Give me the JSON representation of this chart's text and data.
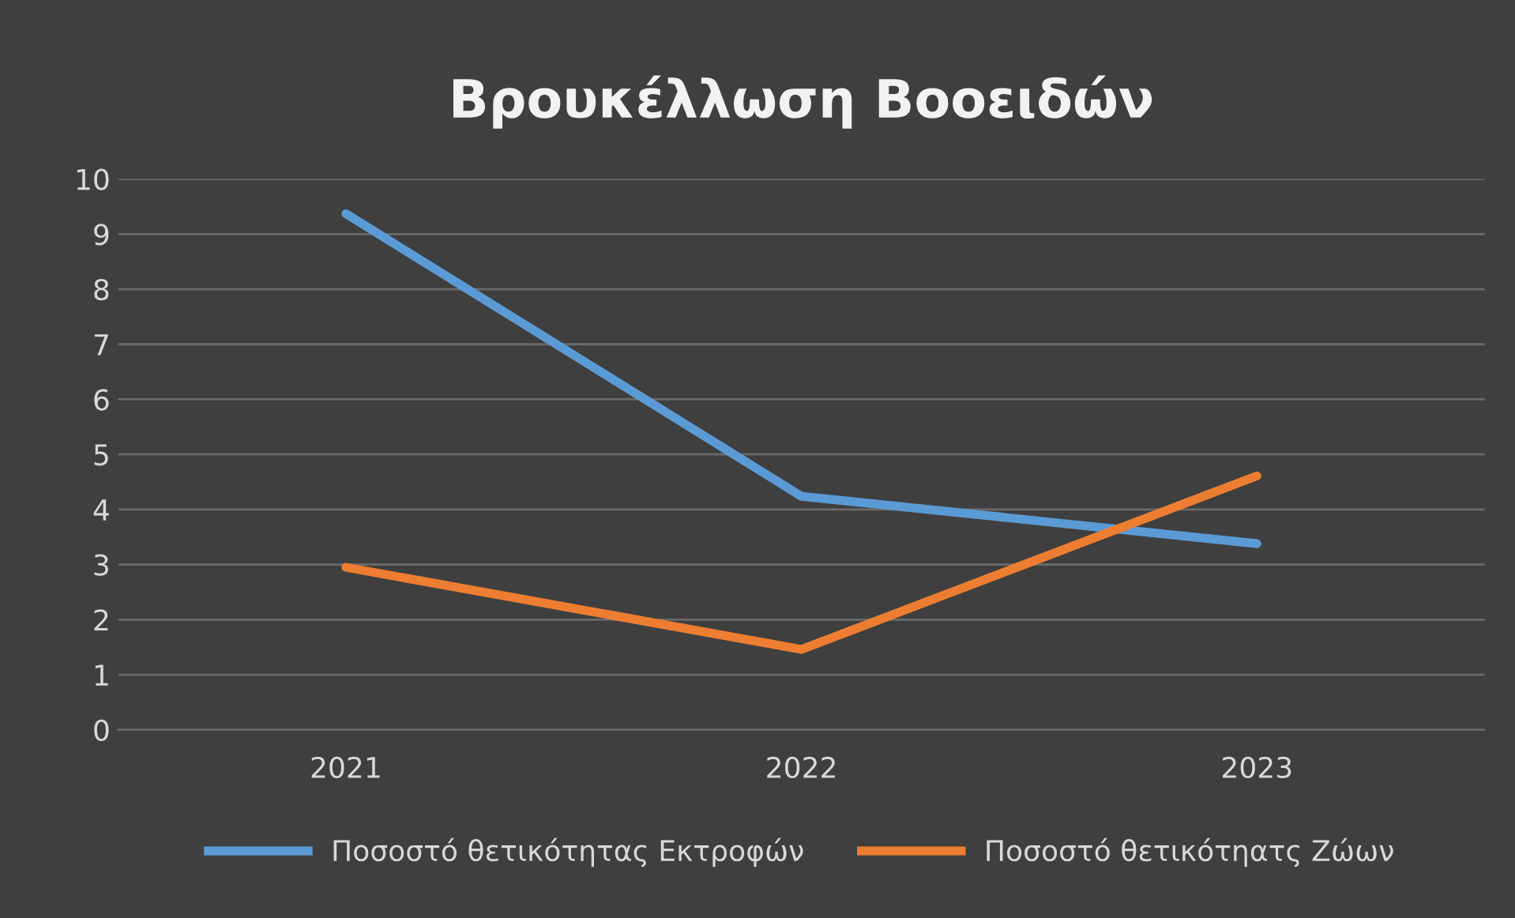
{
  "chart_data": {
    "type": "line",
    "title": "Βρουκέλλωση Βοοειδών",
    "categories": [
      "2021",
      "2022",
      "2023"
    ],
    "series": [
      {
        "name": "Ποσοστό θετικότητας Εκτροφών",
        "color": "#5b9bd5",
        "values": [
          9.37,
          4.24,
          3.38
        ]
      },
      {
        "name": "Ποσοστό θετικότηατς Ζώων",
        "color": "#ed7d31",
        "values": [
          2.95,
          1.46,
          4.61
        ]
      }
    ],
    "ylim": [
      0,
      10
    ],
    "yticks": [
      0,
      1,
      2,
      3,
      4,
      5,
      6,
      7,
      8,
      9,
      10
    ],
    "grid": "y",
    "legend": "bottom",
    "marker": "none",
    "line_style": "solid"
  }
}
